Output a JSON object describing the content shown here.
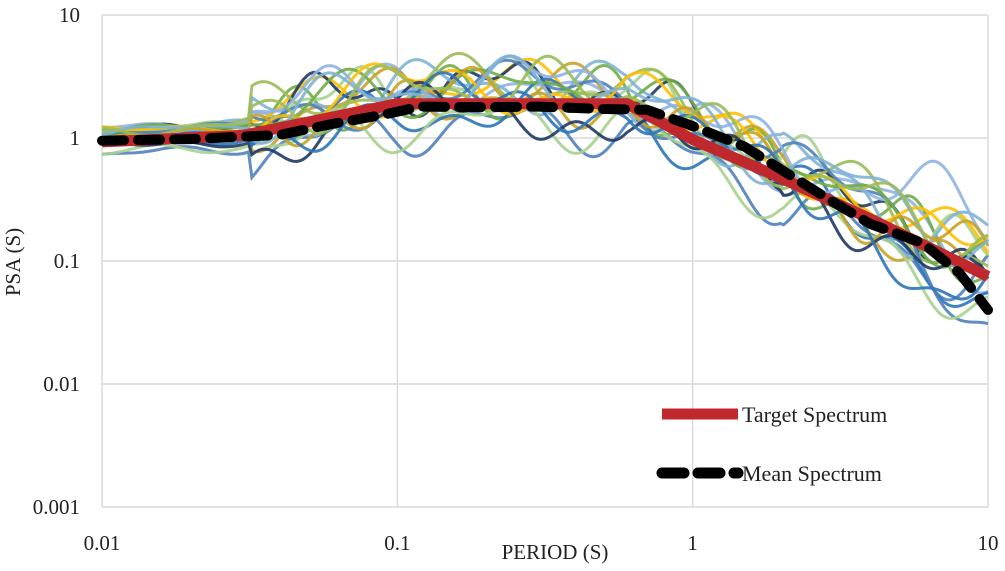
{
  "chart_data": {
    "type": "line",
    "title": "",
    "xlabel": "PERIOD (S)",
    "ylabel": "PSA (S)",
    "xscale": "log",
    "yscale": "log",
    "xlim": [
      0.01,
      10
    ],
    "ylim": [
      0.001,
      10
    ],
    "xticks": [
      0.01,
      0.1,
      1,
      10
    ],
    "xtick_labels": [
      "0.01",
      "0.1",
      "1",
      "10"
    ],
    "yticks": [
      0.001,
      0.01,
      0.1,
      1,
      10
    ],
    "ytick_labels": [
      "0.001",
      "0.01",
      "0.1",
      "1",
      "10"
    ],
    "grid": true,
    "legend_position": "bottom-right",
    "series": [
      {
        "name": "Target Spectrum",
        "style": "solid-thick",
        "color": "#c0282d",
        "x": [
          0.01,
          0.03,
          0.1,
          0.6,
          1.0,
          2.0,
          4.0,
          10.0
        ],
        "y": [
          0.93,
          1.05,
          1.9,
          1.9,
          0.97,
          0.47,
          0.22,
          0.075
        ]
      },
      {
        "name": "Mean Spectrum",
        "style": "dashed-thick",
        "color": "#000000",
        "x": [
          0.01,
          0.02,
          0.04,
          0.06,
          0.09,
          0.12,
          0.2,
          0.3,
          0.5,
          0.7,
          1.0,
          1.5,
          2.0,
          3.0,
          4.0,
          6.0,
          8.0,
          10.0
        ],
        "y": [
          0.95,
          0.98,
          1.06,
          1.3,
          1.55,
          1.8,
          1.78,
          1.8,
          1.72,
          1.7,
          1.25,
          0.85,
          0.55,
          0.3,
          0.2,
          0.14,
          0.08,
          0.04
        ]
      }
    ],
    "record_colors": [
      "#4f81bd",
      "#8eb4e3",
      "#70ad47",
      "#a9d18e",
      "#ffc000",
      "#c9a227",
      "#1f3864",
      "#2e75b6",
      "#7fb3d5",
      "#9bbb59"
    ],
    "record_count": 20
  }
}
